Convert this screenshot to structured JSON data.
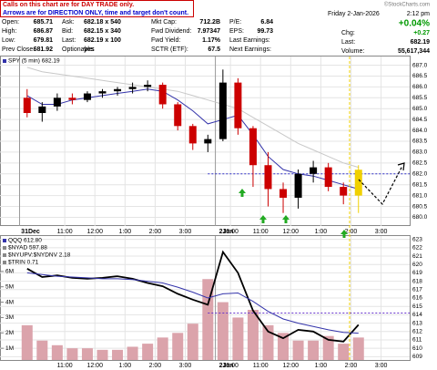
{
  "notes": [
    "Calls on this chart are for DAY TRADE only.",
    "Arrows are for DIRECTION ONLY, time and target don't count."
  ],
  "credit": "©StockCharts.com",
  "quote_rows": [
    [
      "Open:",
      "685.71",
      "Ask:",
      "682.18 x 540",
      "Mkt Cap:",
      "712.2B",
      "P/E:",
      "6.84"
    ],
    [
      "High:",
      "686.87",
      "Bid:",
      "682.15 x 340",
      "Fwd Dividend:",
      "7.97347",
      "EPS:",
      "99.73"
    ],
    [
      "Low:",
      "679.81",
      "Last:",
      "682.19 x 100",
      "Fwd Yield:",
      "1.17%",
      "Last Earnings:",
      ""
    ],
    [
      "Prev Close:",
      "681.92",
      "Optionable:",
      "yes",
      "SCTR (ETF):",
      "67.5",
      "Next Earnings:",
      ""
    ]
  ],
  "date": "Friday 2-Jan-2026",
  "time": "2:12 pm",
  "change_pct": "+0.04%",
  "right_rows": [
    [
      "Chg:",
      "+0.27"
    ],
    [
      "Last:",
      "682.19"
    ],
    [
      "Volume:",
      "55,617,344"
    ]
  ],
  "chart_data": [
    {
      "type": "candlestick",
      "legend": "SPY (5 min) 682.19",
      "open": [
        685.5,
        684.8,
        685.1,
        685.5,
        685.4,
        685.7,
        685.8,
        685.9,
        686.0,
        686.1,
        685.2,
        684.2,
        683.4,
        683.6,
        686.2,
        684.1,
        682.4,
        681.3,
        680.9,
        682.0,
        682.3,
        681.4,
        681.0
      ],
      "high": [
        685.9,
        685.3,
        685.7,
        685.7,
        685.8,
        685.9,
        686.0,
        686.2,
        686.3,
        686.2,
        685.3,
        684.3,
        683.8,
        686.8,
        686.4,
        684.2,
        683.0,
        681.6,
        682.2,
        682.6,
        682.5,
        681.6,
        682.4
      ],
      "low": [
        684.6,
        684.4,
        684.9,
        685.2,
        685.3,
        685.5,
        685.6,
        685.7,
        685.8,
        685.0,
        684.0,
        683.1,
        683.0,
        683.5,
        683.8,
        681.4,
        680.5,
        680.2,
        680.4,
        681.6,
        681.2,
        680.6,
        680.2
      ],
      "close": [
        684.8,
        685.1,
        685.5,
        685.4,
        685.7,
        685.8,
        685.9,
        686.0,
        686.1,
        685.2,
        684.2,
        683.4,
        683.6,
        686.2,
        684.1,
        682.4,
        681.3,
        680.9,
        682.0,
        682.3,
        681.4,
        681.0,
        682.19
      ],
      "up_color": "#000000",
      "down_color": "#cc0000",
      "highlight_color": "#f0d000",
      "series": [
        {
          "color": "#3333aa",
          "values": [
            685.6,
            685.2,
            685.2,
            685.4,
            685.5,
            685.6,
            685.7,
            685.8,
            685.9,
            685.8,
            685.4,
            684.9,
            684.3,
            684.5,
            684.7,
            683.8,
            682.8,
            682.2,
            682.0,
            681.9,
            681.7,
            681.5,
            681.3
          ]
        },
        {
          "color": "#c8c8c8",
          "values": [
            686.9,
            686.7,
            686.6,
            686.5,
            686.4,
            686.3,
            686.2,
            686.1,
            686.0,
            685.9,
            685.8,
            685.6,
            685.4,
            685.2,
            685.0,
            684.6,
            684.2,
            683.8,
            683.4,
            683.1,
            682.8,
            682.5,
            682.3
          ]
        }
      ],
      "ref_line": 682.0,
      "ref_color": "#3333cc",
      "xlim": [
        -1.3,
        25.9
      ],
      "xticks": [
        {
          "value": 0,
          "label": "31Dec"
        },
        {
          "value": 3,
          "label": "11:00"
        },
        {
          "value": 5,
          "label": "12:00"
        },
        {
          "value": 7,
          "label": "1:00"
        },
        {
          "value": 9,
          "label": "2:00"
        },
        {
          "value": 11,
          "label": "3:00"
        },
        {
          "value": 13,
          "label": "2Jan"
        },
        {
          "value": 14,
          "label": "10:00"
        },
        {
          "value": 16,
          "label": "11:00"
        },
        {
          "value": 18,
          "label": "12:00"
        },
        {
          "value": 20,
          "label": "1:00"
        },
        {
          "value": 22,
          "label": "2:00"
        },
        {
          "value": 24,
          "label": "3:00"
        }
      ],
      "ylim": [
        679.6,
        687.4
      ],
      "yticks": [
        {
          "value": 680,
          "label": "680.0"
        },
        {
          "value": 680.5,
          "label": "680.5"
        },
        {
          "value": 681,
          "label": "681.0"
        },
        {
          "value": 681.5,
          "label": "681.5"
        },
        {
          "value": 682,
          "label": "682.0"
        },
        {
          "value": 682.5,
          "label": "682.5"
        },
        {
          "value": 683,
          "label": "683.0"
        },
        {
          "value": 683.5,
          "label": "683.5"
        },
        {
          "value": 684,
          "label": "684.0"
        },
        {
          "value": 684.5,
          "label": "684.5"
        },
        {
          "value": 685,
          "label": "685.0"
        },
        {
          "value": 685.5,
          "label": "685.5"
        },
        {
          "value": 686,
          "label": "686.0"
        },
        {
          "value": 686.5,
          "label": "686.5"
        },
        {
          "value": 687,
          "label": "687.0"
        }
      ],
      "grid": true
    },
    {
      "type": "line",
      "legend": [
        "QQQ 612.80",
        "$NYAD 597.88",
        "$NYUPV:$NYDNV 2.18",
        "$TRIN 0.71"
      ],
      "series": [
        {
          "color": "#000000",
          "values": [
            619.5,
            618.5,
            618.7,
            618.4,
            618.3,
            618.4,
            618.6,
            618.3,
            617.8,
            617.4,
            616.5,
            615.8,
            615.2,
            621.5,
            619.0,
            614.5,
            612.0,
            611.2,
            612.2,
            612.0,
            611.0,
            610.8,
            612.8
          ]
        },
        {
          "color": "#3333aa",
          "values": [
            619.0,
            618.8,
            618.6,
            618.5,
            618.4,
            618.3,
            618.3,
            618.2,
            618.0,
            617.8,
            617.3,
            616.7,
            616.0,
            616.5,
            616.6,
            615.6,
            614.4,
            613.5,
            613.0,
            612.6,
            612.2,
            611.9,
            611.8
          ]
        }
      ],
      "volume": {
        "color": "#dba3ab",
        "values": [
          2500000,
          1500000,
          1200000,
          1000000,
          1000000,
          900000,
          900000,
          1100000,
          1300000,
          1700000,
          2000000,
          2600000,
          5500000,
          4000000,
          3000000,
          3500000,
          2500000,
          2000000,
          1500000,
          1500000,
          1800000,
          1300000,
          1700000
        ]
      },
      "ref_line": 614.2,
      "ref_color": "#6633cc",
      "xlim": [
        -1.3,
        25.9
      ],
      "xticks": [
        {
          "value": 3,
          "label": "11:00"
        },
        {
          "value": 5,
          "label": "12:00"
        },
        {
          "value": 7,
          "label": "1:00"
        },
        {
          "value": 9,
          "label": "2:00"
        },
        {
          "value": 11,
          "label": "3:00"
        },
        {
          "value": 13,
          "label": "2Jan"
        },
        {
          "value": 14,
          "label": "10:00"
        },
        {
          "value": 16,
          "label": "11:00"
        },
        {
          "value": 18,
          "label": "12:00"
        },
        {
          "value": 20,
          "label": "1:00"
        },
        {
          "value": 22,
          "label": "2:00"
        },
        {
          "value": 24,
          "label": "3:00"
        }
      ],
      "ylim": [
        608.6,
        623.4
      ],
      "yticks": [
        609,
        610,
        611,
        612,
        613,
        614,
        615,
        616,
        617,
        618,
        619,
        620,
        621,
        622,
        623
      ],
      "y2lim": [
        240000,
        8300000
      ],
      "y2ticks": [
        {
          "value": 1000000,
          "label": "1M"
        },
        {
          "value": 2000000,
          "label": "2M"
        },
        {
          "value": 3000000,
          "label": "3M"
        },
        {
          "value": 4000000,
          "label": "4M"
        },
        {
          "value": 5000000,
          "label": "5M"
        },
        {
          "value": 6000000,
          "label": "6M"
        }
      ],
      "grid": true
    }
  ]
}
